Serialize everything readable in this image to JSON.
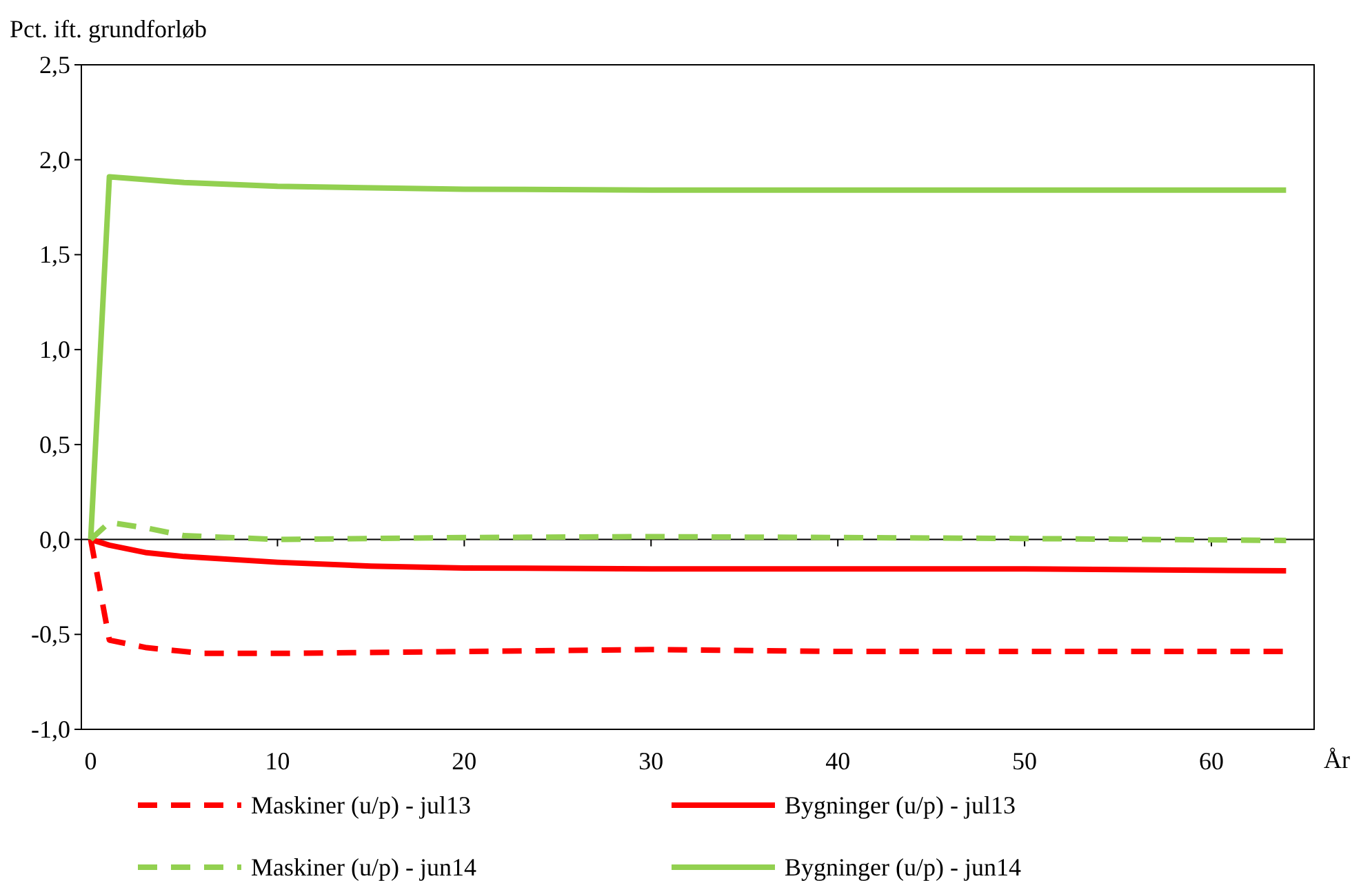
{
  "chart_data": {
    "type": "line",
    "ylabel": "Pct. ift. grundforløb",
    "xlabel": "År",
    "xlim": [
      -0.5,
      65.5
    ],
    "xticks": [
      0,
      10,
      20,
      30,
      40,
      50,
      60
    ],
    "ylim": [
      -1,
      2.5
    ],
    "yticks": [
      {
        "value": -1,
        "label": "-1,0"
      },
      {
        "value": -0.5,
        "label": "-0,5"
      },
      {
        "value": 0,
        "label": "0,0"
      },
      {
        "value": 0.5,
        "label": "0,5"
      },
      {
        "value": 1,
        "label": "1,0"
      },
      {
        "value": 1.5,
        "label": "1,5"
      },
      {
        "value": 2,
        "label": "2,0"
      },
      {
        "value": 2.5,
        "label": "2,5"
      }
    ],
    "legend": "bottom",
    "marker": "none",
    "series": [
      {
        "name": "Maskiner (u/p) - jul13",
        "color": "#ff0000",
        "line_style": "dashed",
        "x": [
          0,
          1,
          3,
          6,
          10,
          20,
          30,
          40,
          50,
          64
        ],
        "values": [
          0,
          -0.53,
          -0.57,
          -0.6,
          -0.6,
          -0.59,
          -0.58,
          -0.59,
          -0.59,
          -0.59
        ]
      },
      {
        "name": "Bygninger (u/p) - jul13",
        "color": "#ff0000",
        "line_style": "solid",
        "x": [
          0,
          1,
          3,
          5,
          10,
          15,
          20,
          30,
          50,
          64
        ],
        "values": [
          0,
          -0.03,
          -0.07,
          -0.09,
          -0.12,
          -0.14,
          -0.15,
          -0.155,
          -0.155,
          -0.165
        ]
      },
      {
        "name": "Maskiner (u/p) - jun14",
        "color": "#92d050",
        "line_style": "dashed",
        "x": [
          0,
          1,
          3,
          5,
          10,
          20,
          30,
          40,
          50,
          64
        ],
        "values": [
          0,
          0.09,
          0.06,
          0.02,
          0,
          0.01,
          0.015,
          0.01,
          0.005,
          -0.005
        ]
      },
      {
        "name": "Bygninger (u/p) - jun14",
        "color": "#92d050",
        "line_style": "solid",
        "x": [
          0,
          1,
          5,
          10,
          20,
          30,
          64
        ],
        "values": [
          0,
          1.91,
          1.88,
          1.86,
          1.845,
          1.84,
          1.84
        ]
      }
    ]
  }
}
